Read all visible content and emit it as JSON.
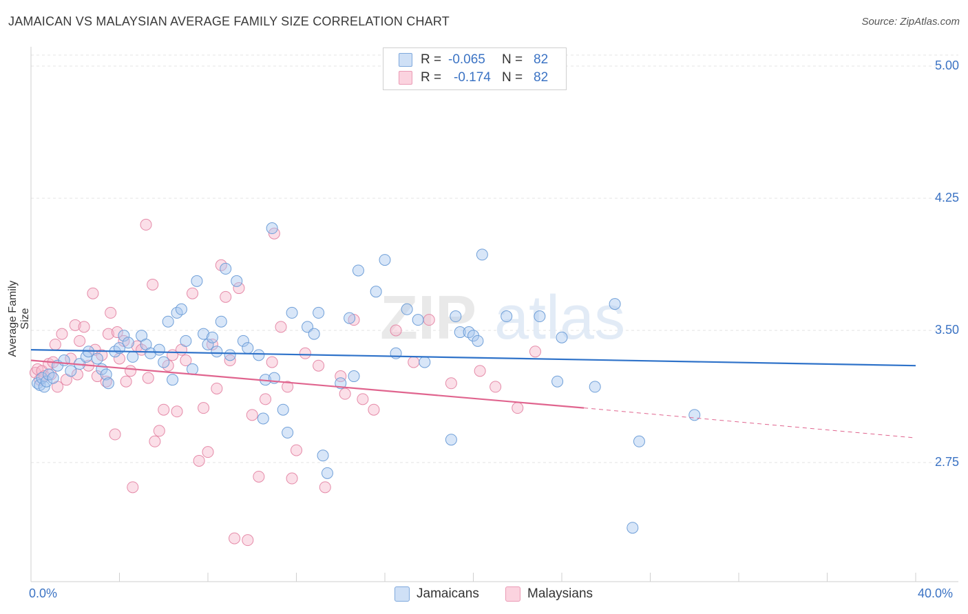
{
  "header": {
    "title": "JAMAICAN VS MALAYSIAN AVERAGE FAMILY SIZE CORRELATION CHART",
    "source": "Source: ZipAtlas.com"
  },
  "watermark": {
    "part1": "ZIP",
    "part2": "atlas"
  },
  "legend_top": {
    "rows": [
      {
        "r_label": "R =",
        "r_value": "-0.065",
        "n_label": "N =",
        "n_value": "82",
        "color": "#a9c8ef"
      },
      {
        "r_label": "R =",
        "r_value": "-0.174",
        "n_label": "N =",
        "n_value": "82",
        "color": "#f6b8cb"
      }
    ]
  },
  "legend_bottom": {
    "items": [
      {
        "label": "Jamaicans",
        "color": "#a9c8ef"
      },
      {
        "label": "Malaysians",
        "color": "#f6b8cb"
      }
    ]
  },
  "colors": {
    "jamaicans_fill": "#a9c8ef",
    "jamaicans_stroke": "#6f9fd8",
    "jamaicans_line": "#2e72c9",
    "malaysians_fill": "#f6b8cb",
    "malaysians_stroke": "#e58aa8",
    "malaysians_line": "#e0648e",
    "tick_text": "#3b73c4"
  },
  "chart_data": {
    "type": "scatter",
    "title": "JAMAICAN VS MALAYSIAN AVERAGE FAMILY SIZE CORRELATION CHART",
    "xlabel": "",
    "ylabel": "Average Family Size",
    "xlim": [
      0,
      40
    ],
    "ylim": [
      2.0,
      5.1
    ],
    "x_tick_labels": [
      "0.0%",
      "40.0%"
    ],
    "y_ticks": [
      2.75,
      3.5,
      4.25,
      5.0
    ],
    "y_tick_labels": [
      "2.75",
      "3.50",
      "4.25",
      "5.00"
    ],
    "grid": "horizontal dashed",
    "legend_position": "top-center",
    "series": [
      {
        "name": "Jamaicans",
        "r": -0.065,
        "n": 82,
        "trend": {
          "x": [
            0,
            40
          ],
          "y": [
            3.39,
            3.3
          ]
        },
        "points": [
          [
            0.3,
            3.2
          ],
          [
            0.4,
            3.19
          ],
          [
            0.5,
            3.23
          ],
          [
            0.6,
            3.18
          ],
          [
            0.7,
            3.21
          ],
          [
            0.8,
            3.25
          ],
          [
            1.0,
            3.23
          ],
          [
            1.2,
            3.3
          ],
          [
            1.5,
            3.33
          ],
          [
            1.8,
            3.27
          ],
          [
            2.2,
            3.31
          ],
          [
            2.5,
            3.35
          ],
          [
            2.6,
            3.38
          ],
          [
            3.0,
            3.34
          ],
          [
            3.2,
            3.28
          ],
          [
            3.4,
            3.25
          ],
          [
            3.5,
            3.2
          ],
          [
            3.8,
            3.38
          ],
          [
            4.0,
            3.4
          ],
          [
            4.2,
            3.47
          ],
          [
            4.4,
            3.43
          ],
          [
            4.6,
            3.35
          ],
          [
            5.0,
            3.47
          ],
          [
            5.2,
            3.42
          ],
          [
            5.4,
            3.37
          ],
          [
            5.8,
            3.39
          ],
          [
            6.0,
            3.32
          ],
          [
            6.2,
            3.55
          ],
          [
            6.4,
            3.22
          ],
          [
            6.6,
            3.6
          ],
          [
            6.8,
            3.62
          ],
          [
            7.0,
            3.44
          ],
          [
            7.3,
            3.28
          ],
          [
            7.5,
            3.78
          ],
          [
            7.8,
            3.48
          ],
          [
            8.0,
            3.42
          ],
          [
            8.2,
            3.46
          ],
          [
            8.4,
            3.38
          ],
          [
            8.6,
            3.55
          ],
          [
            8.8,
            3.85
          ],
          [
            9.0,
            3.36
          ],
          [
            9.3,
            3.78
          ],
          [
            9.6,
            3.44
          ],
          [
            9.8,
            3.4
          ],
          [
            10.3,
            3.36
          ],
          [
            10.5,
            3.0
          ],
          [
            10.6,
            3.22
          ],
          [
            10.9,
            4.08
          ],
          [
            11.0,
            3.23
          ],
          [
            11.4,
            3.05
          ],
          [
            11.6,
            2.92
          ],
          [
            11.8,
            3.6
          ],
          [
            12.5,
            3.52
          ],
          [
            12.8,
            3.48
          ],
          [
            13.0,
            3.6
          ],
          [
            13.2,
            2.79
          ],
          [
            13.4,
            2.69
          ],
          [
            14.0,
            3.2
          ],
          [
            14.4,
            3.57
          ],
          [
            14.6,
            3.24
          ],
          [
            14.8,
            3.84
          ],
          [
            15.6,
            3.72
          ],
          [
            16.0,
            3.9
          ],
          [
            16.5,
            3.37
          ],
          [
            17.0,
            3.62
          ],
          [
            17.5,
            3.56
          ],
          [
            17.8,
            3.32
          ],
          [
            19.0,
            2.88
          ],
          [
            19.2,
            3.58
          ],
          [
            19.4,
            3.49
          ],
          [
            19.8,
            3.49
          ],
          [
            20.0,
            3.47
          ],
          [
            20.2,
            3.44
          ],
          [
            20.4,
            3.93
          ],
          [
            21.5,
            3.58
          ],
          [
            23.0,
            3.58
          ],
          [
            23.8,
            3.21
          ],
          [
            24.0,
            3.46
          ],
          [
            25.5,
            3.18
          ],
          [
            26.4,
            3.65
          ],
          [
            27.5,
            2.87
          ],
          [
            30.0,
            3.02
          ],
          [
            27.2,
            2.38
          ]
        ]
      },
      {
        "name": "Malaysians",
        "r": -0.174,
        "n": 82,
        "trend": {
          "x": [
            0,
            25
          ],
          "y": [
            3.33,
            3.06
          ],
          "dashed_to": {
            "x": 40,
            "y": 2.89
          }
        },
        "points": [
          [
            0.2,
            3.26
          ],
          [
            0.3,
            3.28
          ],
          [
            0.4,
            3.22
          ],
          [
            0.5,
            3.27
          ],
          [
            0.6,
            3.24
          ],
          [
            0.8,
            3.31
          ],
          [
            0.9,
            3.25
          ],
          [
            1.0,
            3.32
          ],
          [
            1.1,
            3.42
          ],
          [
            1.2,
            3.18
          ],
          [
            1.4,
            3.48
          ],
          [
            1.6,
            3.22
          ],
          [
            1.8,
            3.34
          ],
          [
            2.0,
            3.53
          ],
          [
            2.1,
            3.25
          ],
          [
            2.2,
            3.44
          ],
          [
            2.4,
            3.52
          ],
          [
            2.6,
            3.3
          ],
          [
            2.8,
            3.71
          ],
          [
            2.9,
            3.39
          ],
          [
            3.0,
            3.24
          ],
          [
            3.2,
            3.36
          ],
          [
            3.4,
            3.21
          ],
          [
            3.5,
            3.48
          ],
          [
            3.6,
            3.6
          ],
          [
            3.8,
            2.91
          ],
          [
            3.9,
            3.49
          ],
          [
            4.0,
            3.34
          ],
          [
            4.2,
            3.44
          ],
          [
            4.3,
            3.21
          ],
          [
            4.5,
            3.27
          ],
          [
            4.6,
            2.61
          ],
          [
            4.8,
            3.41
          ],
          [
            5.0,
            3.39
          ],
          [
            5.2,
            4.1
          ],
          [
            5.3,
            3.23
          ],
          [
            5.5,
            3.76
          ],
          [
            5.6,
            2.87
          ],
          [
            5.8,
            2.93
          ],
          [
            6.0,
            3.05
          ],
          [
            6.2,
            3.3
          ],
          [
            6.4,
            3.36
          ],
          [
            6.6,
            3.04
          ],
          [
            6.8,
            3.39
          ],
          [
            7.0,
            3.33
          ],
          [
            7.3,
            3.71
          ],
          [
            7.6,
            2.76
          ],
          [
            7.8,
            3.06
          ],
          [
            8.0,
            2.81
          ],
          [
            8.2,
            3.42
          ],
          [
            8.4,
            3.17
          ],
          [
            8.6,
            3.87
          ],
          [
            8.8,
            3.69
          ],
          [
            9.0,
            3.33
          ],
          [
            9.2,
            2.32
          ],
          [
            9.4,
            3.74
          ],
          [
            9.8,
            2.31
          ],
          [
            10.0,
            3.02
          ],
          [
            10.3,
            2.67
          ],
          [
            10.6,
            3.11
          ],
          [
            10.9,
            3.32
          ],
          [
            11.0,
            4.05
          ],
          [
            11.3,
            3.52
          ],
          [
            11.6,
            3.18
          ],
          [
            11.8,
            2.66
          ],
          [
            12.0,
            2.82
          ],
          [
            12.4,
            3.37
          ],
          [
            13.0,
            3.3
          ],
          [
            13.3,
            2.61
          ],
          [
            14.0,
            3.24
          ],
          [
            14.2,
            3.14
          ],
          [
            14.6,
            3.56
          ],
          [
            15.0,
            3.11
          ],
          [
            15.5,
            3.05
          ],
          [
            16.5,
            3.5
          ],
          [
            17.3,
            3.32
          ],
          [
            18.0,
            3.56
          ],
          [
            19.0,
            3.2
          ],
          [
            20.3,
            3.27
          ],
          [
            21.0,
            3.18
          ],
          [
            22.0,
            3.06
          ],
          [
            22.8,
            3.38
          ]
        ]
      }
    ]
  }
}
